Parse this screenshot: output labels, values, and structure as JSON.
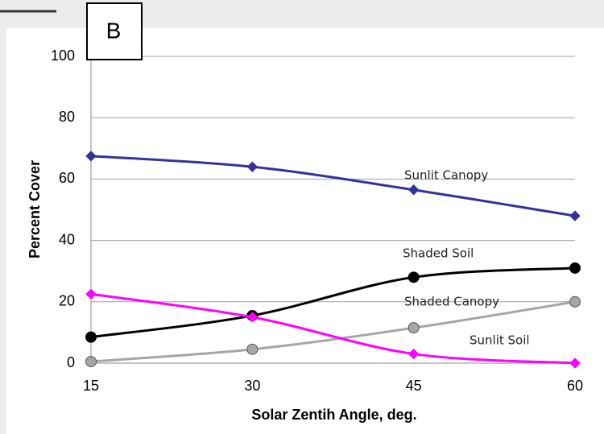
{
  "chart_data": {
    "type": "line",
    "panel_label": "B",
    "x_label": "Solar Zentih Angle, deg.",
    "y_label": "Percent Cover",
    "x": [
      15,
      30,
      45,
      60
    ],
    "xlim": [
      15,
      60
    ],
    "xticks": [
      15,
      30,
      45,
      60
    ],
    "ylim": [
      0,
      100
    ],
    "yticks": [
      0,
      20,
      40,
      60,
      80,
      100
    ],
    "grid": true,
    "series": [
      {
        "name": "Sunlit Canopy",
        "color": "#333399",
        "marker": "diamond",
        "values": [
          67.5,
          64,
          56.5,
          48
        ]
      },
      {
        "name": "Shaded Soil",
        "color": "#000000",
        "marker": "circle",
        "values": [
          8.5,
          15.5,
          28,
          31
        ]
      },
      {
        "name": "Shaded Canopy",
        "color": "#a6a6a6",
        "marker": "circle",
        "values": [
          0.5,
          4.5,
          11.5,
          20
        ]
      },
      {
        "name": "Sunlit Soil",
        "color": "#ff00ff",
        "marker": "diamond",
        "values": [
          22.5,
          15,
          3,
          0
        ]
      }
    ]
  }
}
